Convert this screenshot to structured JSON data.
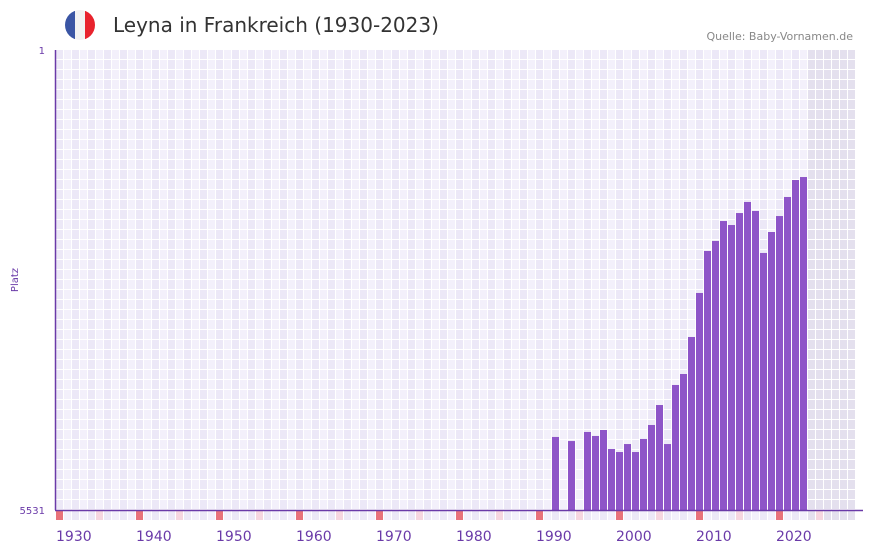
{
  "title": "Leyna in Frankreich (1930-2023)",
  "source": "Quelle: Baby-Vornamen.de",
  "colors": {
    "bar": "#8e55c8",
    "axis": "#6a3aa8",
    "cellA": "#ece8f7",
    "cellB": "#f3f0fb",
    "future": "#e4e0ee",
    "decade": "#e8727a",
    "half": "#f6d6e0"
  },
  "chart_data": {
    "type": "bar",
    "title": "Leyna in Frankreich (1930-2023)",
    "xlabel": "",
    "ylabel": "Platz",
    "xlim": [
      1930,
      2029
    ],
    "ylim": [
      5531,
      1
    ],
    "y_ticks": [
      "1",
      "5531"
    ],
    "x_ticks": [
      "1930",
      "1940",
      "1950",
      "1960",
      "1970",
      "1980",
      "1990",
      "2000",
      "2010",
      "2020"
    ],
    "years": [
      1992,
      1994,
      1996,
      1997,
      1998,
      1999,
      2000,
      2001,
      2002,
      2003,
      2004,
      2005,
      2006,
      2007,
      2008,
      2009,
      2010,
      2011,
      2012,
      2013,
      2014,
      2015,
      2016,
      2017,
      2018,
      2019,
      2020,
      2021,
      2022,
      2023
    ],
    "ranks": [
      4653,
      4702,
      4593,
      4641,
      4569,
      4798,
      4834,
      4738,
      4834,
      4677,
      4509,
      4269,
      4738,
      4028,
      3896,
      3451,
      2922,
      2417,
      2297,
      2057,
      2105,
      1961,
      1828,
      1936,
      2441,
      2189,
      1997,
      1768,
      1564,
      1528
    ],
    "future_from": 2024,
    "grid": true
  }
}
